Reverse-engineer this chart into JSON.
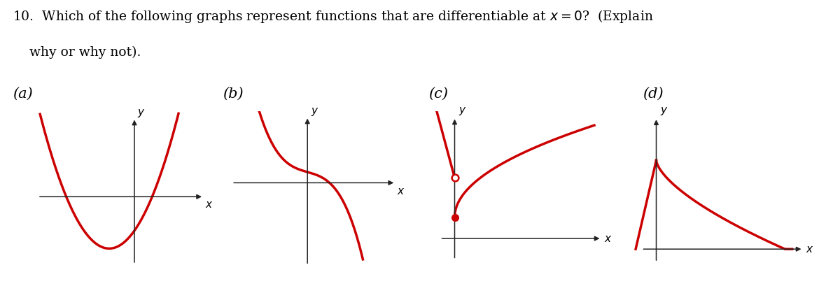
{
  "bg_color": "#ffffff",
  "curve_color": "#cc0000",
  "axis_color": "#222222",
  "title_line1": "10.  Which of the following graphs represent functions that are differentiable at ",
  "title_line2": "    why or why not).",
  "labels": [
    "(a)",
    "(b)",
    "(c)",
    "(d)"
  ],
  "title_fontsize": 13.5,
  "label_fontsize": 15,
  "axis_label_fontsize": 11
}
